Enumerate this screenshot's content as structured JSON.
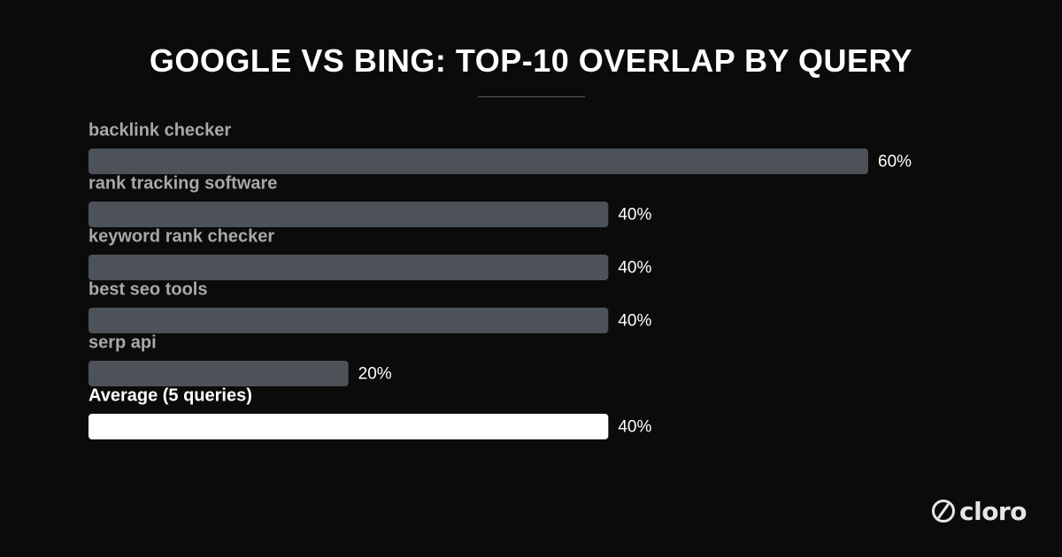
{
  "chart_data": {
    "type": "bar",
    "orientation": "horizontal",
    "title": "GOOGLE VS BING: TOP-10 OVERLAP BY QUERY",
    "categories": [
      "backlink checker",
      "rank tracking software",
      "keyword rank checker",
      "best seo tools",
      "serp api",
      "Average (5 queries)"
    ],
    "values": [
      60,
      40,
      40,
      40,
      20,
      40
    ],
    "value_labels": [
      "60%",
      "40%",
      "40%",
      "40%",
      "20%",
      "40%"
    ],
    "highlight_index": 5,
    "xlim": [
      0,
      60
    ],
    "grid": false,
    "legend": "none",
    "colors": {
      "background": "#0b0b0b",
      "bar": "#4c5257",
      "bar_highlight": "#ffffff",
      "label": "#a8a8a8",
      "label_highlight": "#ffffff",
      "value_label": "#ffffff"
    }
  },
  "brand": {
    "logo_text": "cloro",
    "logo_icon": "cloro-circle-slash-icon"
  }
}
